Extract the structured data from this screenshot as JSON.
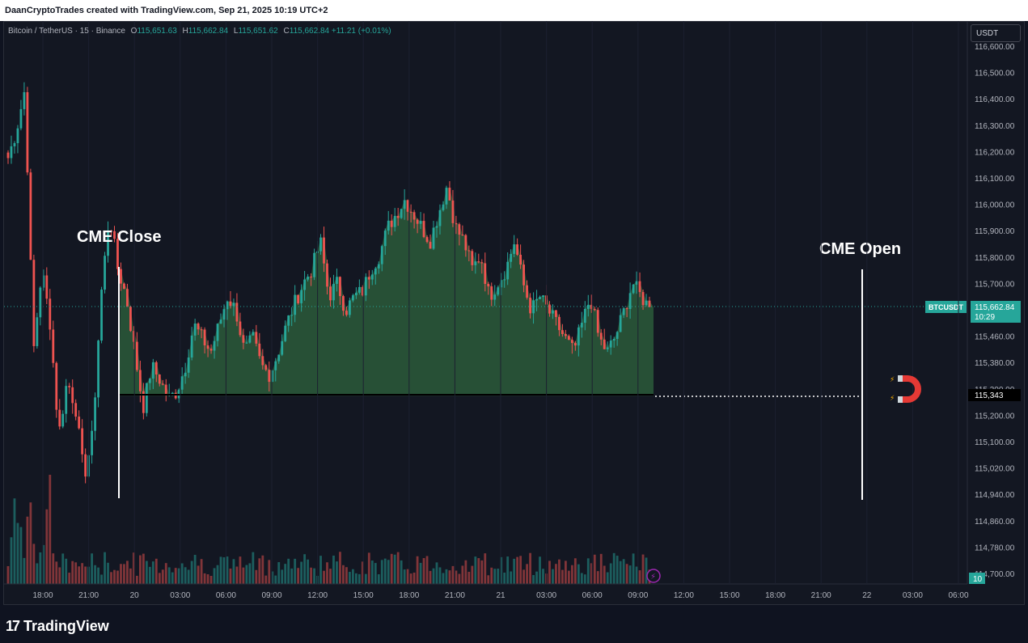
{
  "header": {
    "attribution": "DaanCryptoTrades created with TradingView.com, Sep 21, 2025 10:19 UTC+2"
  },
  "legend": {
    "symbol": "Bitcoin / TetherUS · 15 · Binance",
    "open_label": "O",
    "open": "115,651.63",
    "high_label": "H",
    "high": "115,662.84",
    "low_label": "L",
    "low": "115,651.62",
    "close_label": "C",
    "close": "115,662.84",
    "change": "+11.21 (+0.01%)"
  },
  "currency_button": "USDT",
  "price_axis": {
    "ticks": [
      "116,600.00",
      "116,500.00",
      "116,400.00",
      "116,300.00",
      "116,200.00",
      "116,100.00",
      "116,000.00",
      "115,900.00",
      "115,800.00",
      "115,700.00",
      "115,540.00",
      "115,460.00",
      "115,380.00",
      "115,300.00",
      "115,200.00",
      "115,100.00",
      "115,020.00",
      "114,940.00",
      "114,860.00",
      "114,780.00",
      "114,700.00"
    ]
  },
  "time_axis": {
    "ticks": [
      "18:00",
      "21:00",
      "20",
      "03:00",
      "06:00",
      "09:00",
      "12:00",
      "15:00",
      "18:00",
      "21:00",
      "21",
      "03:00",
      "06:00",
      "09:00",
      "12:00",
      "15:00",
      "18:00",
      "21:00",
      "22",
      "03:00",
      "06:00"
    ]
  },
  "price_tag": {
    "symbol": "BTCUSDT",
    "price": "115,662.84",
    "countdown": "10:29"
  },
  "level_tag": "115,343",
  "volume_tag": "10",
  "annotations": {
    "cme_close": "CME Close",
    "cme_open": "CME Open"
  },
  "icons": {
    "magnet": "magnet-icon",
    "lightning": "lightning-icon",
    "logo": "tradingview-logo"
  },
  "colors": {
    "up": "#26a69a",
    "down": "#ef5350",
    "gap_fill": "#2b5a3a",
    "background": "#131722",
    "level_line": "#ffffff"
  },
  "logo_text": "TradingView",
  "chart_data": {
    "type": "candlestick",
    "symbol": "Bitcoin / TetherUS",
    "interval": "15",
    "exchange": "Binance",
    "ylim": [
      114700,
      116600
    ],
    "last_price": 115662.84,
    "cme_close_level": 115343,
    "series": [
      {
        "name": "price_path",
        "values": [
          116200,
          116300,
          116450,
          115500,
          115800,
          115600,
          115200,
          115400,
          115300,
          115050,
          115200,
          115700,
          116000,
          115800,
          115700,
          115500,
          115300,
          115450,
          115400,
          115330,
          115360,
          115450,
          115600,
          115550,
          115500,
          115600,
          115700,
          115650,
          115500,
          115550,
          115450,
          115420,
          115500,
          115600,
          115680,
          115750,
          115800,
          115900,
          115700,
          115750,
          115650,
          115700,
          115720,
          115800,
          115850,
          115950,
          116000,
          116050,
          116000,
          115950,
          115900,
          116000,
          116100,
          115950,
          115900,
          115800,
          115850,
          115700,
          115750,
          115800,
          115900,
          115750,
          115650,
          115700,
          115650,
          115600,
          115550,
          115500,
          115600,
          115700,
          115550,
          115500,
          115560,
          115650,
          115750,
          115700,
          115660
        ]
      }
    ]
  }
}
